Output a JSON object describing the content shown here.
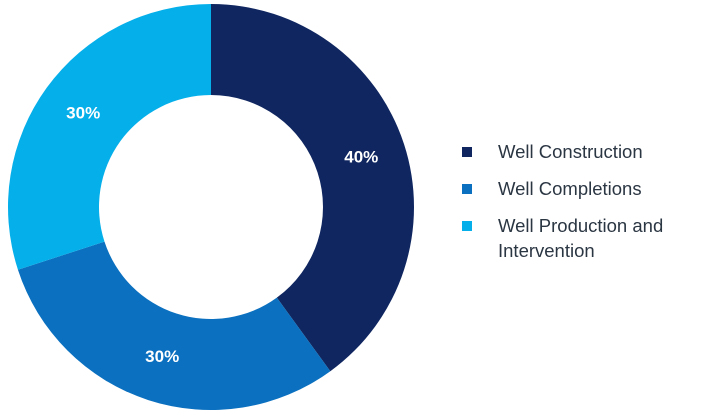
{
  "chart_data": {
    "type": "pie",
    "donut": true,
    "categories": [
      "Well Construction",
      "Well Completions",
      "Well Production and Intervention"
    ],
    "values": [
      40,
      30,
      30
    ],
    "data_labels": [
      "40%",
      "30%",
      "30%"
    ],
    "colors": [
      "#0f2660",
      "#0a70bf",
      "#05afea"
    ],
    "title": "",
    "legend_position": "right"
  }
}
